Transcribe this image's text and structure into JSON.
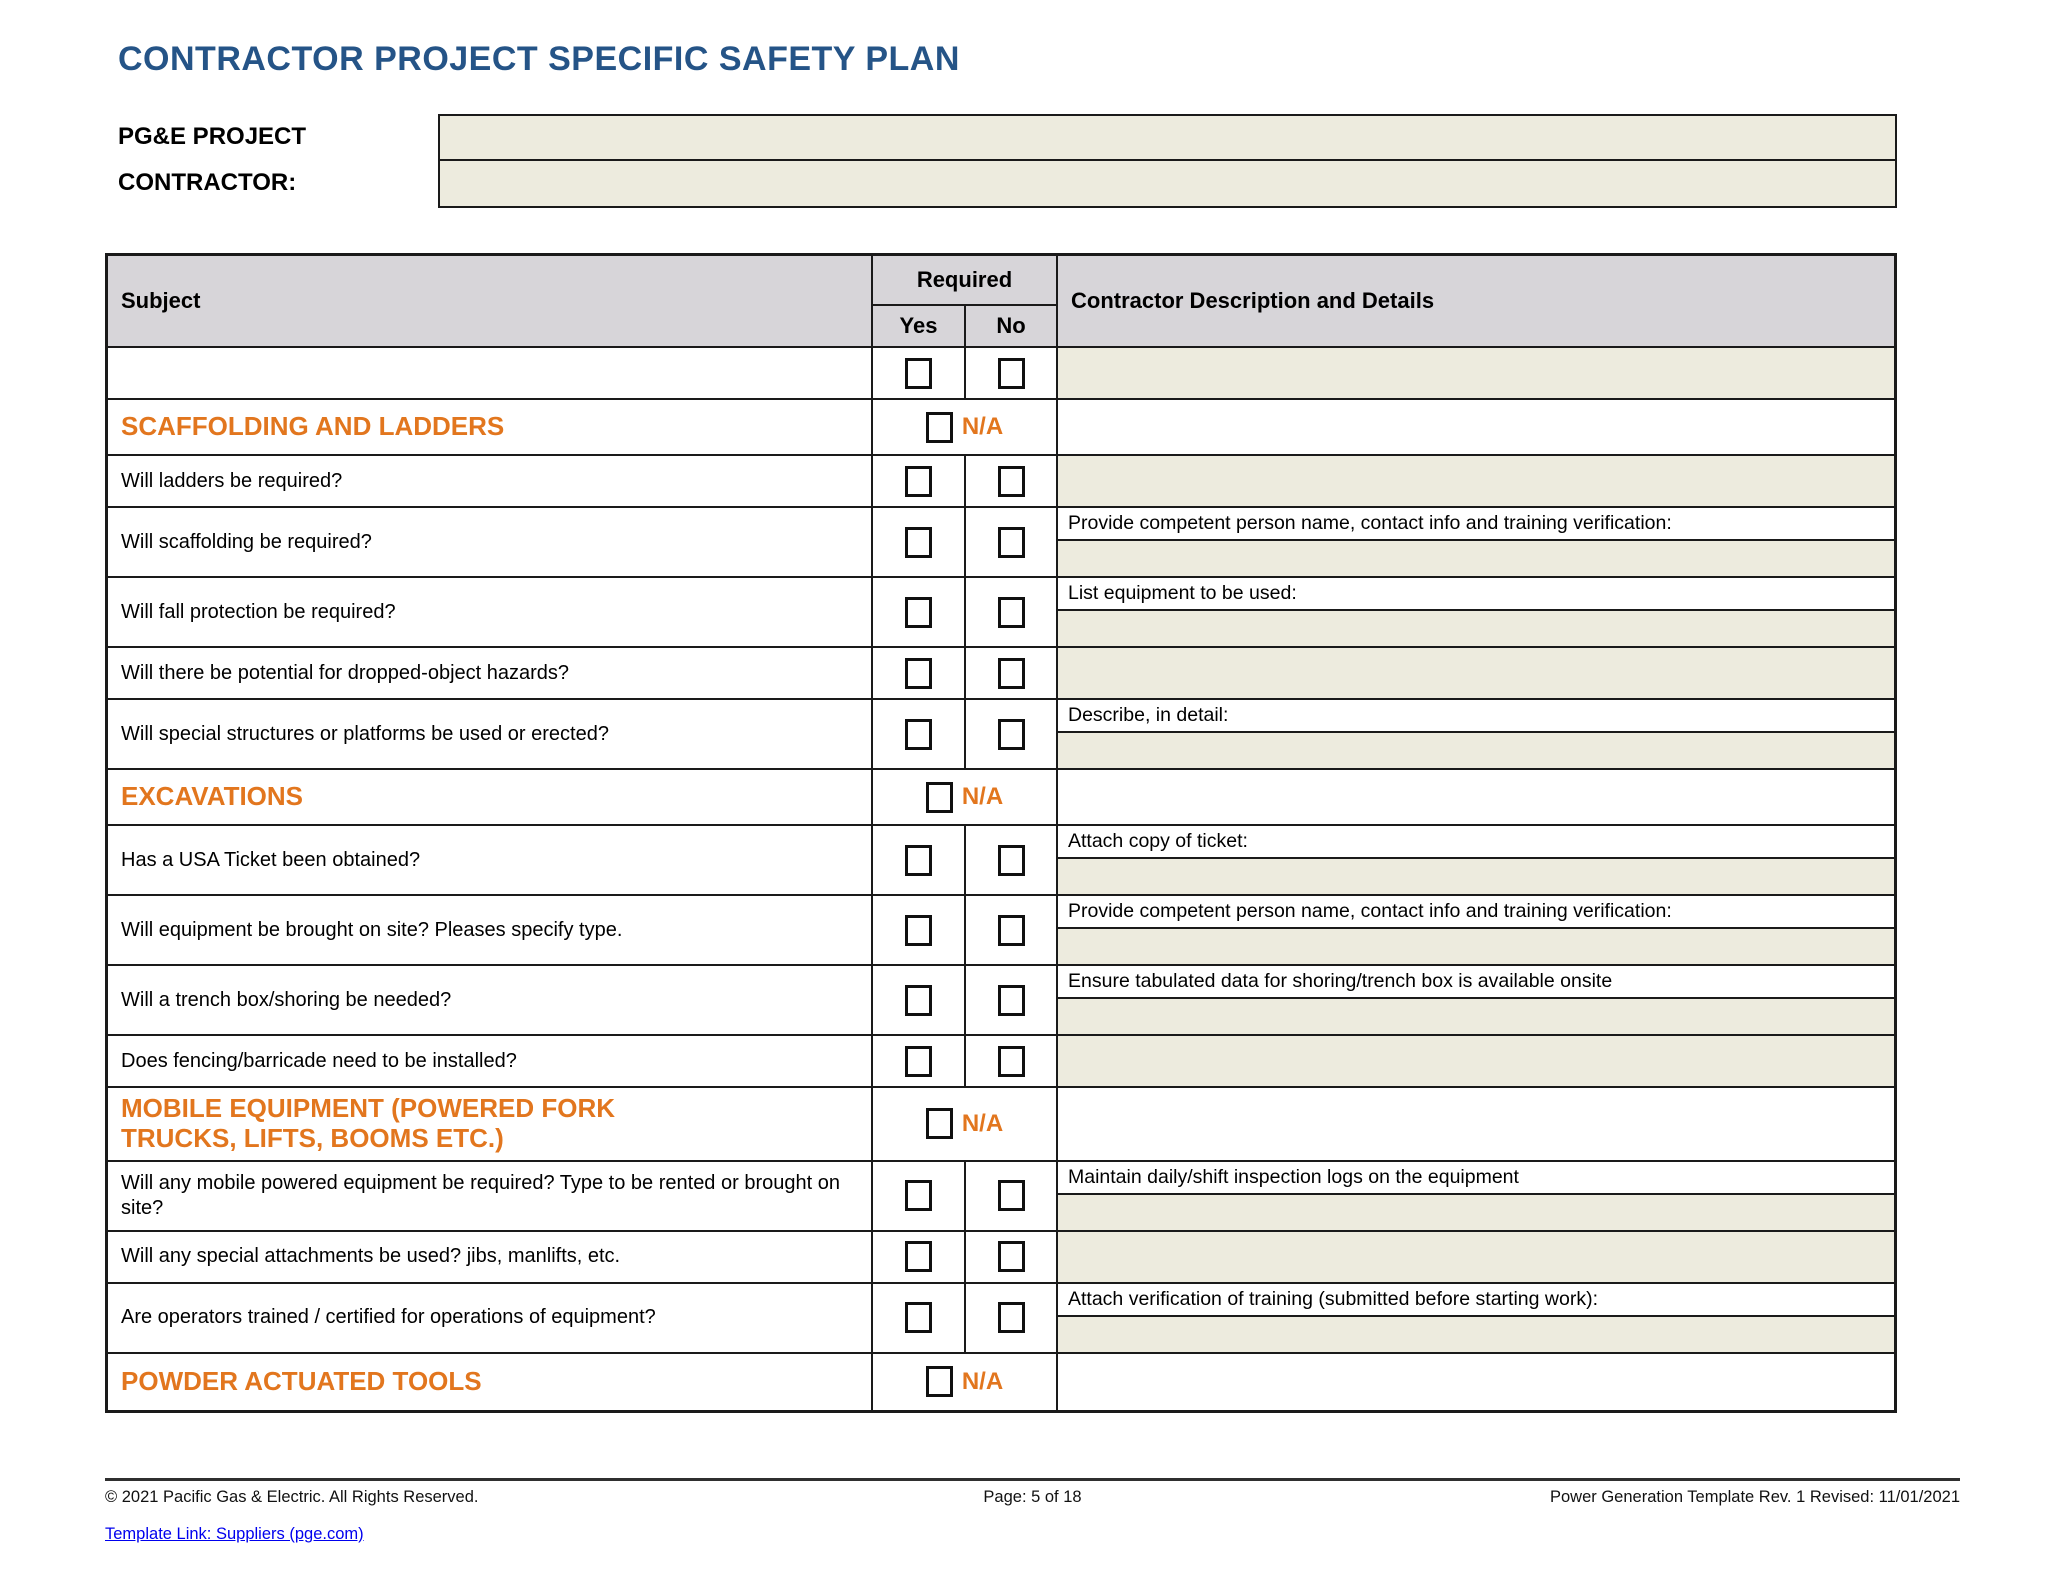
{
  "header": {
    "title": "CONTRACTOR PROJECT SPECIFIC SAFETY PLAN",
    "fields": [
      {
        "label": "PG&E PROJECT",
        "value": ""
      },
      {
        "label": "CONTRACTOR:",
        "value": ""
      }
    ]
  },
  "table": {
    "headers": {
      "subject": "Subject",
      "required": "Required",
      "yes": "Yes",
      "no": "No",
      "description": "Contractor Description and Details"
    },
    "na_label": "N/A",
    "rows": [
      {
        "type": "question",
        "subject": "",
        "desc_label": null
      },
      {
        "type": "section",
        "subject": "SCAFFOLDING AND LADDERS"
      },
      {
        "type": "question",
        "subject": "Will ladders be required?",
        "desc_label": null
      },
      {
        "type": "question",
        "subject": "Will scaffolding be required?",
        "desc_label": "Provide competent person name, contact info and training verification:"
      },
      {
        "type": "question",
        "subject": "Will fall protection be required?",
        "desc_label": "List equipment to be used:"
      },
      {
        "type": "question",
        "subject": "Will there be potential for dropped-object hazards?",
        "desc_label": null
      },
      {
        "type": "question",
        "subject": "Will special structures or platforms be used or erected?",
        "desc_label": "Describe, in detail:"
      },
      {
        "type": "section",
        "subject": "EXCAVATIONS"
      },
      {
        "type": "question",
        "subject": "Has a USA Ticket been obtained?",
        "desc_label": "Attach copy of ticket:"
      },
      {
        "type": "question",
        "subject": "Will equipment be brought on site? Pleases specify type.",
        "desc_label": "Provide competent person name, contact info and training verification:"
      },
      {
        "type": "question",
        "subject": "Will a trench box/shoring be needed?",
        "desc_label": "Ensure tabulated data for shoring/trench box is available onsite"
      },
      {
        "type": "question",
        "subject": "Does fencing/barricade need to be installed?",
        "desc_label": null
      },
      {
        "type": "section",
        "subject": "MOBILE EQUIPMENT (POWERED FORK TRUCKS, LIFTS, BOOMS ETC.)"
      },
      {
        "type": "question",
        "subject": "Will any mobile powered equipment be required? Type to be rented or brought on site?",
        "desc_label": "Maintain daily/shift inspection logs on the equipment"
      },
      {
        "type": "question",
        "subject": "Will any special attachments be used? jibs, manlifts, etc.",
        "desc_label": null
      },
      {
        "type": "question",
        "subject": "Are operators trained / certified for operations of equipment?",
        "desc_label": "Attach verification of training (submitted before starting work):"
      },
      {
        "type": "section",
        "subject": "POWDER ACTUATED TOOLS"
      }
    ]
  },
  "footer": {
    "copyright": "© 2021 Pacific Gas & Electric. All Rights Reserved.",
    "page": "Page: 5 of 18",
    "revision": "Power Generation Template Rev. 1 Revised: 11/01/2021",
    "link": "Template Link: Suppliers (pge.com)"
  },
  "colors": {
    "title_blue": "#255487",
    "section_orange": "#E2761E",
    "input_beige": "#EDEBDE",
    "header_grey": "#D7D5D9",
    "link_blue": "#0000EE",
    "border_black": "#1A1A1A"
  }
}
